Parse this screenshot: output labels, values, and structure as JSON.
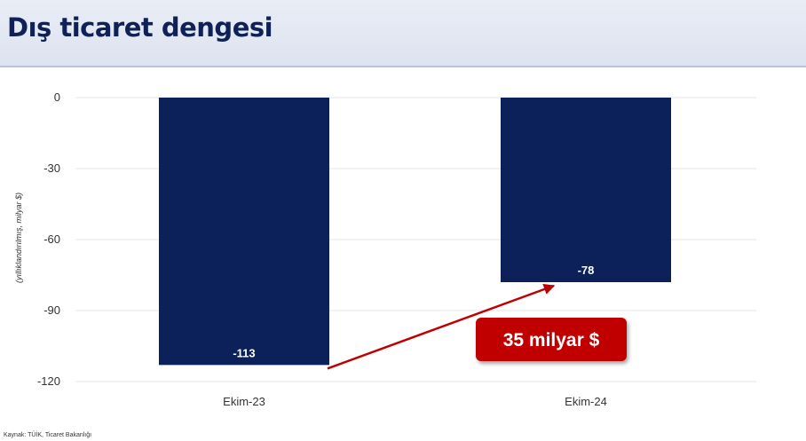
{
  "header": {
    "title": "Dış ticaret dengesi"
  },
  "footer": {
    "source": "Kaynak: TÜİK, Ticaret Bakanlığı"
  },
  "colors": {
    "bar": "#0c2159",
    "accent": "#c00000",
    "grid": "#e6e6e6",
    "header_bg": "#e3e8f2"
  },
  "chart_data": {
    "type": "bar",
    "title": "",
    "ylabel": "(yıllıklandırılmış, milyar $)",
    "xlabel": "",
    "categories": [
      "Ekim-23",
      "Ekim-24"
    ],
    "values": [
      -113,
      -78
    ],
    "data_labels": [
      "-113",
      "-78"
    ],
    "ylim": [
      -120,
      0
    ],
    "yticks": [
      0,
      -30,
      -60,
      -90,
      -120
    ],
    "ytick_labels": [
      "0",
      "-30",
      "-60",
      "-90",
      "-120"
    ],
    "grid": true,
    "annotation": {
      "text": "35 milyar $",
      "from": "Ekim-23",
      "to": "Ekim-24"
    }
  }
}
